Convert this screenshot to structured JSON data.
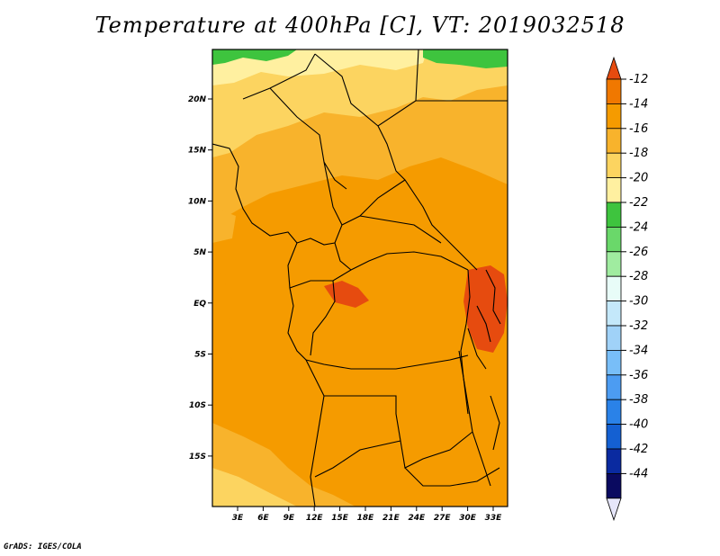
{
  "title": "Temperature at 400hPa [C], VT: 2019032518",
  "credit": "GrADS: IGES/COLA",
  "map": {
    "lat_labels": [
      "20N",
      "15N",
      "10N",
      "5N",
      "EQ",
      "5S",
      "10S",
      "15S"
    ],
    "lon_labels": [
      "3E",
      "6E",
      "9E",
      "12E",
      "15E",
      "18E",
      "21E",
      "24E",
      "27E",
      "30E",
      "33E"
    ]
  },
  "colorbar": {
    "labels": [
      "-12",
      "-14",
      "-16",
      "-18",
      "-20",
      "-22",
      "-24",
      "-26",
      "-28",
      "-30",
      "-32",
      "-34",
      "-36",
      "-38",
      "-40",
      "-42",
      "-44"
    ],
    "colors": [
      "#e64b0f",
      "#f07800",
      "#f59b00",
      "#f8b32c",
      "#fcd460",
      "#fff0a0",
      "#3ec43e",
      "#6ad86a",
      "#a0eca0",
      "#e8fcf8",
      "#c4e8fa",
      "#a0d2f8",
      "#78bef8",
      "#4c9cf2",
      "#2a82e8",
      "#1460d2",
      "#0a2aa0",
      "#0a0a60",
      "#e6e6fa"
    ]
  }
}
